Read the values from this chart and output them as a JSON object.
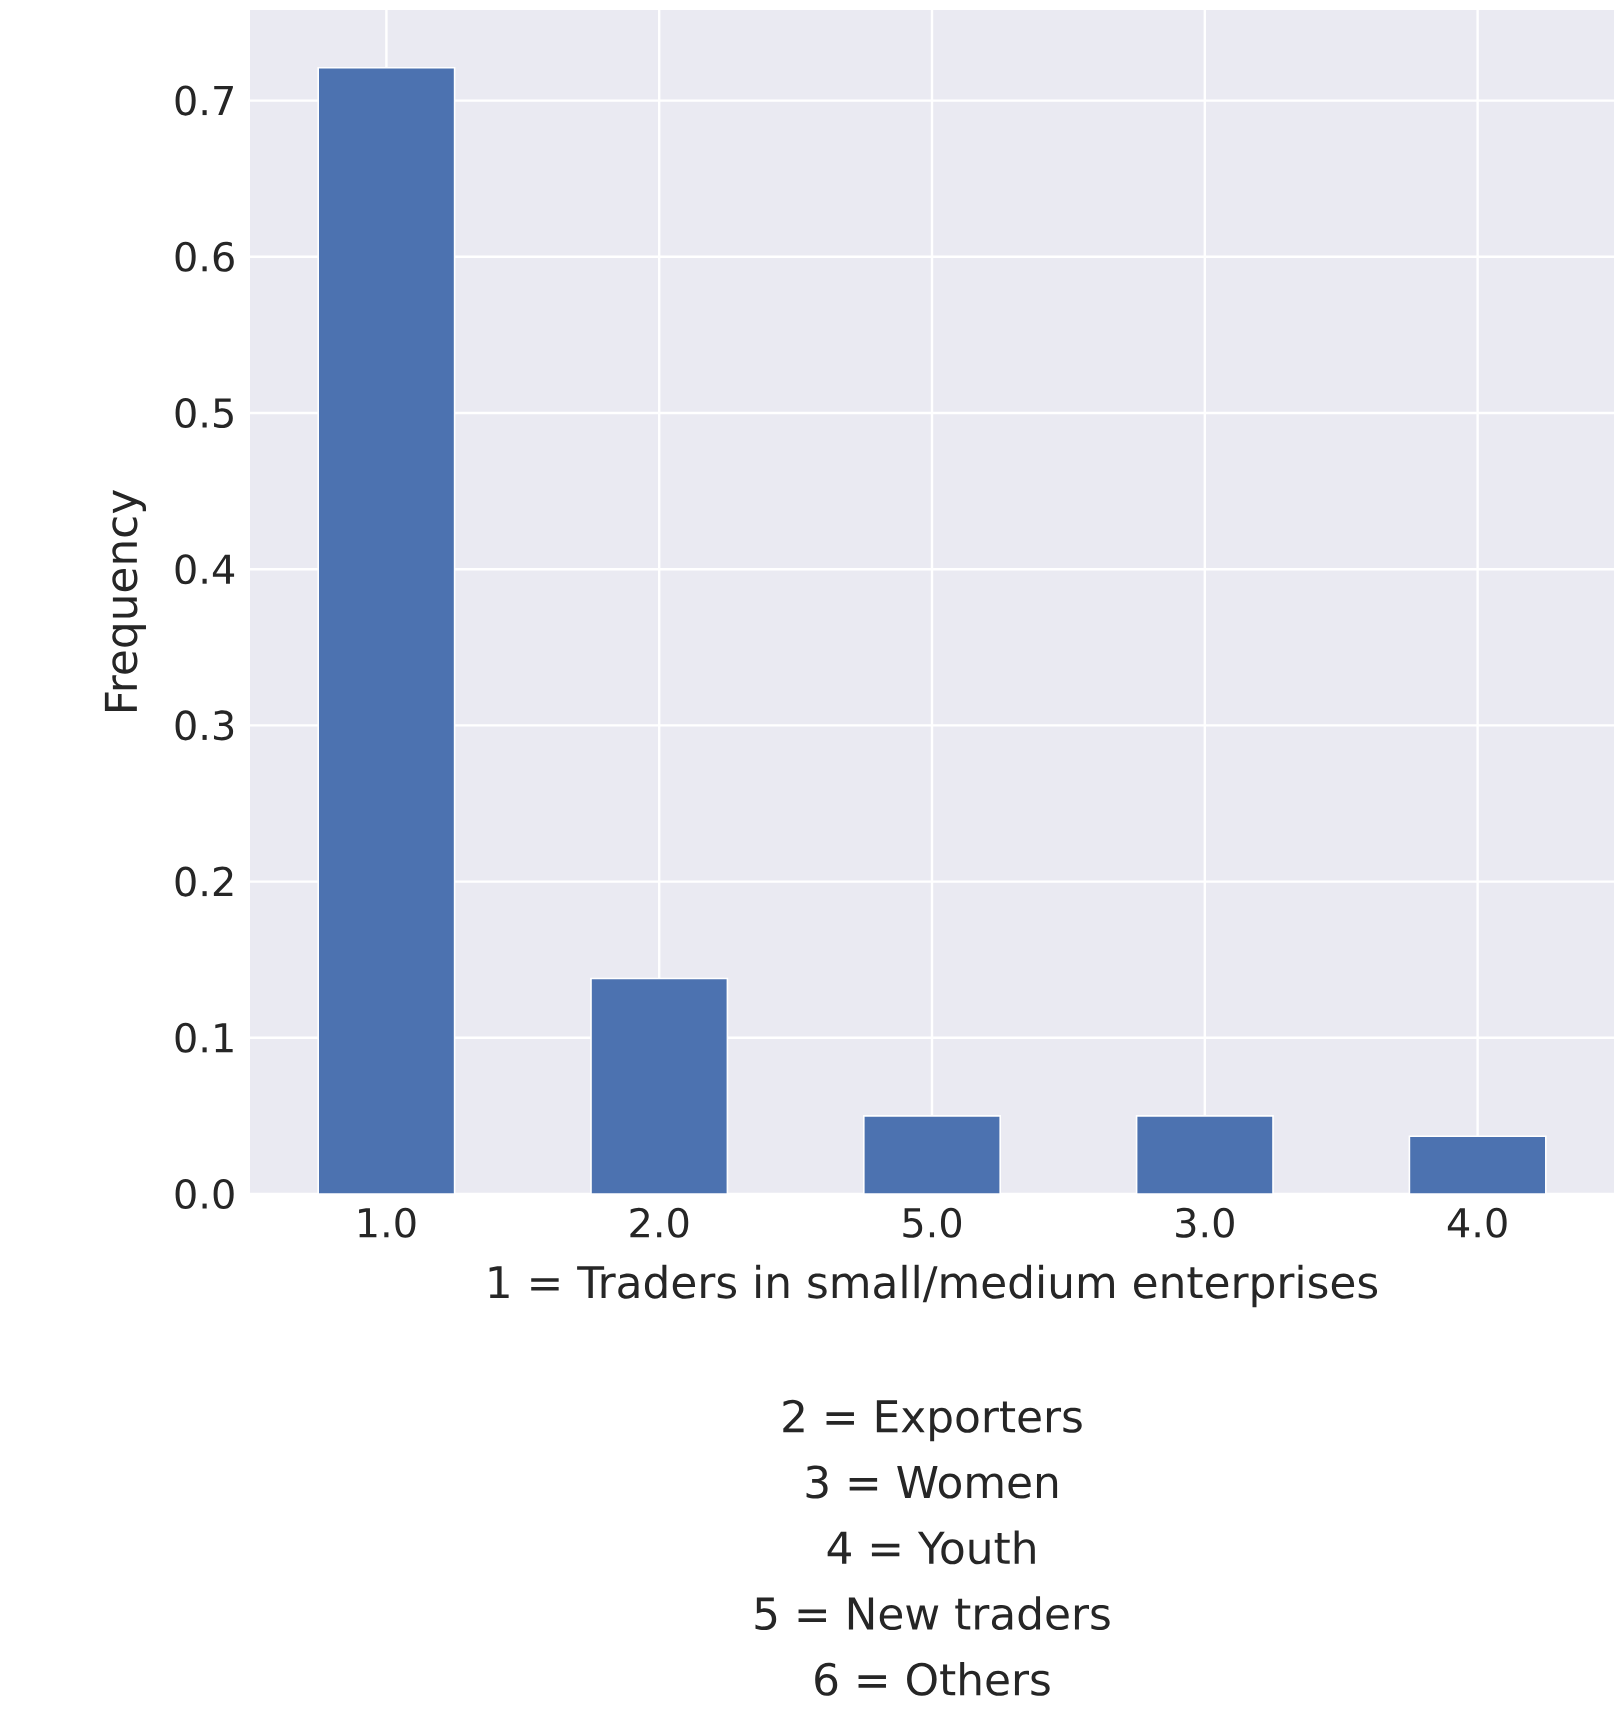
{
  "chart_data": {
    "type": "bar",
    "ylabel": "Frequency",
    "xlabel": "1 = Traders in small/medium enterprises",
    "annotations": [
      "2 = Exporters",
      "3 = Women",
      "4 = Youth",
      "5 = New traders",
      "6 = Others"
    ],
    "categories": [
      "1.0",
      "2.0",
      "5.0",
      "3.0",
      "4.0"
    ],
    "values": [
      0.721,
      0.138,
      0.05,
      0.05,
      0.037
    ],
    "color": "#4c72b0",
    "ylim": [
      0,
      0.758
    ],
    "yticks": [
      {
        "value": 0,
        "label": "0.0"
      },
      0.1,
      0.2,
      0.3,
      0.4,
      0.5,
      0.6,
      0.7
    ],
    "grid": true
  }
}
